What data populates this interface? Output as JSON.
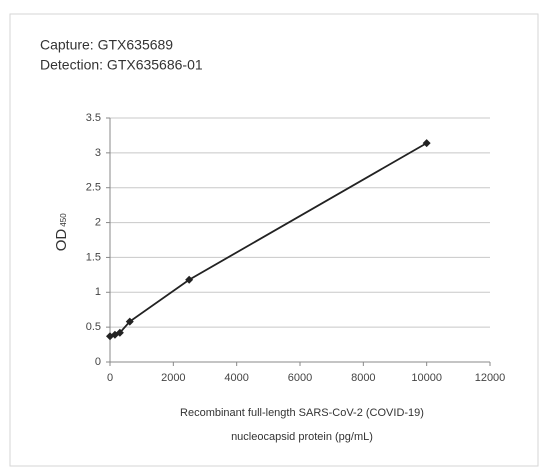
{
  "chart_data": {
    "type": "line",
    "title": [
      "Capture: GTX635689",
      "Detection: GTX635686-01"
    ],
    "x_label": [
      "Recombinant full-length SARS-CoV-2 (COVID-19)",
      "nucleocapsid protein (pg/mL)"
    ],
    "y_label": "OD",
    "y_label_sub": "450",
    "x": [
      0,
      156,
      312,
      625,
      2500,
      10000
    ],
    "series": [
      {
        "name": "OD",
        "color": "#222222",
        "values": [
          0.37,
          0.39,
          0.42,
          0.58,
          1.18,
          3.14
        ]
      }
    ],
    "xlim": [
      0,
      12000
    ],
    "xticks": [
      0,
      2000,
      4000,
      6000,
      8000,
      10000,
      12000
    ],
    "ylim": [
      0,
      3.5
    ],
    "yticks": [
      0,
      0.5,
      1,
      1.5,
      2,
      2.5,
      3,
      3.5
    ],
    "grid": true
  }
}
